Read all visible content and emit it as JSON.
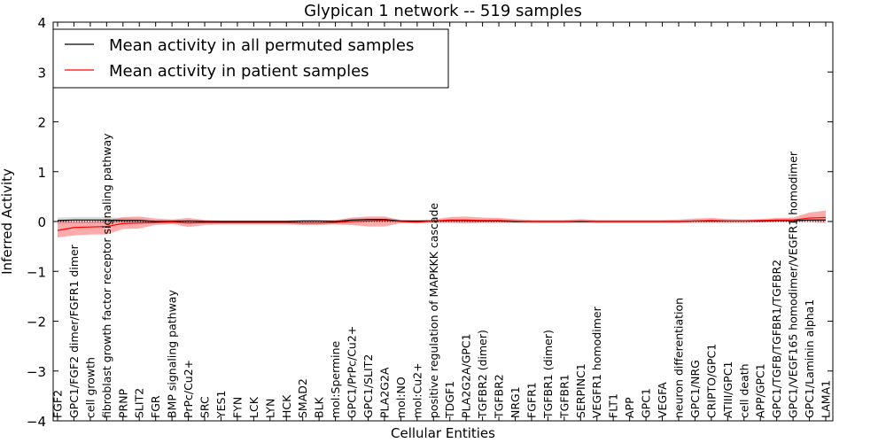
{
  "chart_data": {
    "type": "line",
    "title": "Glypican 1 network -- 519 samples",
    "xlabel": "Cellular Entities",
    "ylabel": "Inferred Activity",
    "ylim": [
      -4,
      4
    ],
    "yticks": [
      "4",
      "3",
      "2",
      "1",
      "0",
      "−1",
      "−2",
      "−3",
      "−4"
    ],
    "legend_position": "top-left",
    "categories": [
      "FGF2",
      "GPC1/FGF2 dimer/FGFR1 dimer",
      "cell growth",
      "fibroblast growth factor receptor signaling pathway",
      "PRNP",
      "SLIT2",
      "FGR",
      "BMP signaling pathway",
      "PrPc/Cu2+",
      "SRC",
      "YES1",
      "FYN",
      "LCK",
      "LYN",
      "HCK",
      "SMAD2",
      "BLK",
      "mol:Spermine",
      "GPC1/PrPc/Cu2+",
      "GPC1/SLIT2",
      "PLA2G2A",
      "mol:NO",
      "mol:Cu2+",
      "positive regulation of MAPKKK cascade",
      "TDGF1",
      "PLA2G2A/GPC1",
      "TGFBR2 (dimer)",
      "TGFBR2",
      "NRG1",
      "FGFR1",
      "TGFBR1 (dimer)",
      "TGFBR1",
      "SERPINC1",
      "VEGFR1 homodimer",
      "FLT1",
      "APP",
      "GPC1",
      "VEGFA",
      "neuron differentiation",
      "GPC1/NRG",
      "CRIPTO/GPC1",
      "ATIII/GPC1",
      "cell death",
      "APP/GPC1",
      "GPC1/TGFB/TGFBR1/TGFBR2",
      "GPC1/VEGF165 homodimer/VEGFR1 homodimer",
      "GPC1/Laminin alpha1",
      "LAMA1"
    ],
    "series": [
      {
        "name": "Mean activity in all permuted samples",
        "color": "#000000",
        "values": [
          0.02,
          0.03,
          0.03,
          0.03,
          0.02,
          0.02,
          0.0,
          0.0,
          0.01,
          0.0,
          0.0,
          0.0,
          0.0,
          0.0,
          0.0,
          0.01,
          0.01,
          0.0,
          0.03,
          0.04,
          0.04,
          0.01,
          0.01,
          0.01,
          0.02,
          0.02,
          0.01,
          0.01,
          0.0,
          0.0,
          0.0,
          0.0,
          0.0,
          0.0,
          0.0,
          0.0,
          0.0,
          0.0,
          0.0,
          0.01,
          0.01,
          0.01,
          0.01,
          0.01,
          0.02,
          0.02,
          0.03,
          0.03
        ],
        "band_upper": [
          0.08,
          0.09,
          0.09,
          0.09,
          0.07,
          0.06,
          0.03,
          0.03,
          0.04,
          0.02,
          0.02,
          0.02,
          0.02,
          0.02,
          0.02,
          0.03,
          0.03,
          0.02,
          0.05,
          0.06,
          0.06,
          0.03,
          0.03,
          0.03,
          0.04,
          0.04,
          0.03,
          0.03,
          0.02,
          0.02,
          0.02,
          0.02,
          0.02,
          0.02,
          0.02,
          0.02,
          0.02,
          0.02,
          0.02,
          0.03,
          0.03,
          0.03,
          0.03,
          0.03,
          0.04,
          0.04,
          0.05,
          0.05
        ],
        "band_lower": [
          -0.05,
          -0.04,
          -0.04,
          -0.04,
          -0.03,
          -0.03,
          -0.03,
          -0.03,
          -0.02,
          -0.02,
          -0.02,
          -0.02,
          -0.02,
          -0.02,
          -0.02,
          -0.01,
          -0.01,
          -0.02,
          0.0,
          0.01,
          0.01,
          -0.01,
          -0.01,
          -0.01,
          0.0,
          0.0,
          -0.01,
          -0.01,
          -0.02,
          -0.02,
          -0.02,
          -0.02,
          -0.02,
          -0.02,
          -0.02,
          -0.02,
          -0.02,
          -0.02,
          -0.02,
          -0.01,
          -0.01,
          -0.01,
          -0.01,
          -0.01,
          0.0,
          0.0,
          0.01,
          0.01
        ]
      },
      {
        "name": "Mean activity in patient samples",
        "color": "#ff0000",
        "values": [
          -0.18,
          -0.12,
          -0.11,
          -0.1,
          -0.04,
          -0.03,
          -0.02,
          -0.01,
          -0.03,
          -0.02,
          -0.02,
          -0.02,
          -0.02,
          -0.02,
          -0.02,
          -0.03,
          -0.03,
          -0.02,
          0.0,
          0.01,
          0.02,
          0.0,
          -0.01,
          0.01,
          0.03,
          0.03,
          0.02,
          0.02,
          0.01,
          0.0,
          0.0,
          0.0,
          0.01,
          0.0,
          0.0,
          0.0,
          0.0,
          0.0,
          0.0,
          0.01,
          0.02,
          0.01,
          0.01,
          0.02,
          0.03,
          0.03,
          0.07,
          0.08
        ],
        "band_upper": [
          0.02,
          0.0,
          0.0,
          0.02,
          0.09,
          0.1,
          0.06,
          0.04,
          0.07,
          0.03,
          0.02,
          0.02,
          0.02,
          0.02,
          0.02,
          0.02,
          0.02,
          0.03,
          0.08,
          0.1,
          0.1,
          0.03,
          0.02,
          0.04,
          0.09,
          0.1,
          0.08,
          0.07,
          0.05,
          0.03,
          0.03,
          0.03,
          0.05,
          0.03,
          0.03,
          0.03,
          0.03,
          0.03,
          0.04,
          0.06,
          0.07,
          0.05,
          0.04,
          0.05,
          0.07,
          0.08,
          0.18,
          0.22
        ],
        "band_lower": [
          -0.32,
          -0.28,
          -0.26,
          -0.26,
          -0.15,
          -0.14,
          -0.07,
          -0.05,
          -0.11,
          -0.07,
          -0.06,
          -0.06,
          -0.06,
          -0.06,
          -0.06,
          -0.07,
          -0.07,
          -0.06,
          -0.07,
          -0.1,
          -0.1,
          -0.03,
          -0.04,
          -0.03,
          -0.03,
          -0.04,
          -0.03,
          -0.03,
          -0.03,
          -0.03,
          -0.03,
          -0.03,
          -0.03,
          -0.03,
          -0.03,
          -0.03,
          -0.03,
          -0.03,
          -0.03,
          -0.03,
          -0.03,
          -0.03,
          -0.03,
          -0.02,
          -0.01,
          -0.01,
          -0.01,
          -0.03
        ]
      }
    ],
    "legend": [
      "Mean activity in all permuted samples",
      "Mean activity in patient samples"
    ],
    "band_colors": {
      "permuted": "#b0b0b0",
      "patient": "#ff4444"
    }
  }
}
